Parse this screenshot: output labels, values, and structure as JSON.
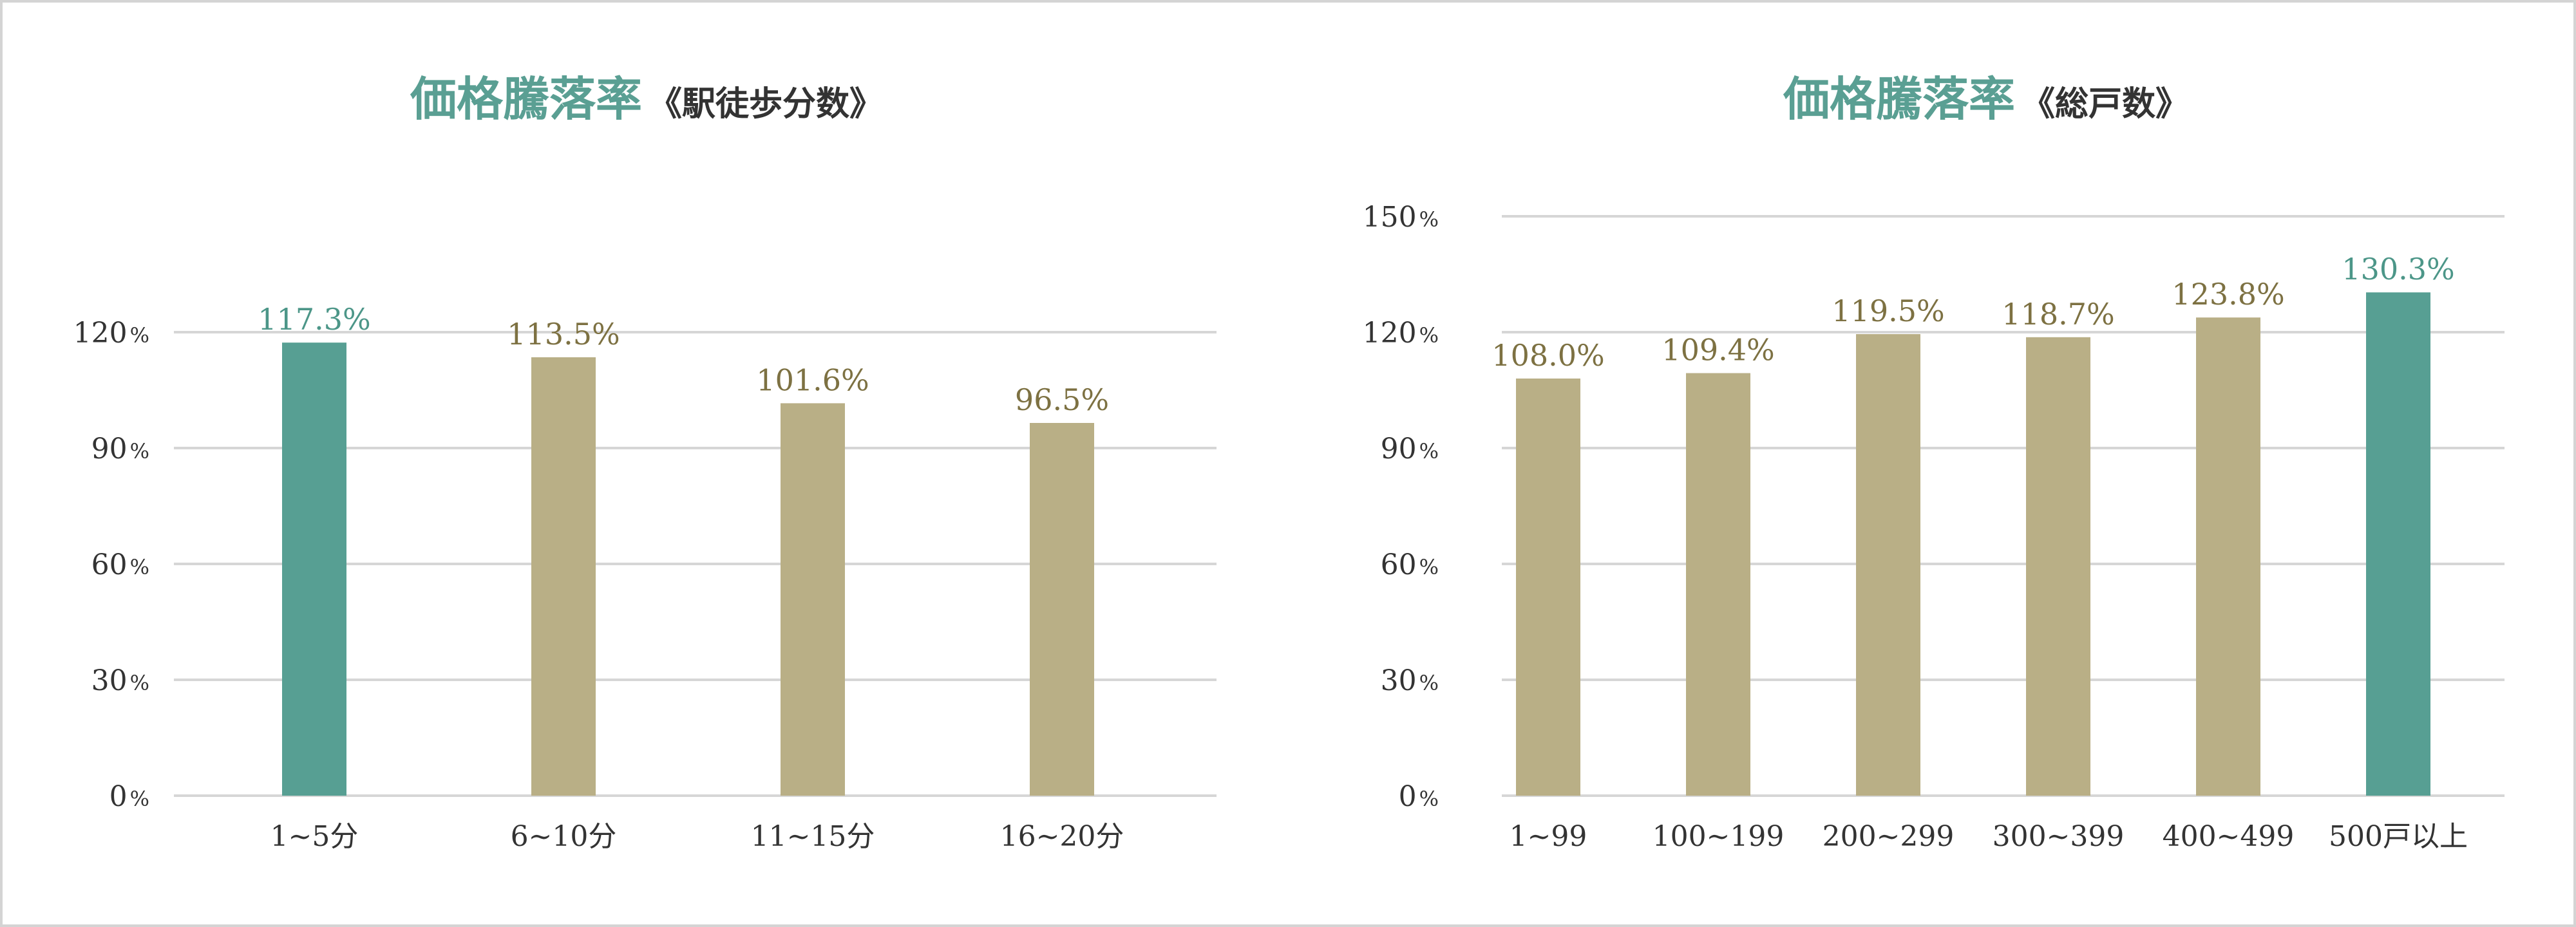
{
  "colors": {
    "highlight": "#579f93",
    "normal": "#b9af86",
    "value_normal": "#7d7142",
    "value_highlight": "#4c9688",
    "title": "#5a9f93"
  },
  "chart_data": [
    {
      "type": "bar",
      "title": "価格騰落率",
      "subtitle": "《駅徒歩分数》",
      "categories": [
        "1~5分",
        "6~10分",
        "11~15分",
        "16~20分"
      ],
      "values": [
        117.3,
        113.5,
        101.6,
        96.5
      ],
      "value_labels": [
        "117.3%",
        "113.5%",
        "101.6%",
        "96.5%"
      ],
      "highlight_index": 0,
      "ylim": [
        0,
        120
      ],
      "yticks": [
        0,
        30,
        60,
        90,
        120
      ],
      "ytick_labels": [
        "0",
        "30",
        "60",
        "90",
        "120"
      ],
      "ytick_unit": "%",
      "xlabel": "",
      "ylabel": "",
      "grid": true
    },
    {
      "type": "bar",
      "title": "価格騰落率",
      "subtitle": "《総戸数》",
      "categories": [
        "1~99",
        "100~199",
        "200~299",
        "300~399",
        "400~499",
        "500戸以上"
      ],
      "values": [
        108.0,
        109.4,
        119.5,
        118.7,
        123.8,
        130.3
      ],
      "value_labels": [
        "108.0%",
        "109.4%",
        "119.5%",
        "118.7%",
        "123.8%",
        "130.3%"
      ],
      "highlight_index": 5,
      "ylim": [
        0,
        150
      ],
      "yticks": [
        0,
        30,
        60,
        90,
        120,
        150
      ],
      "ytick_labels": [
        "0",
        "30",
        "60",
        "90",
        "120",
        "150"
      ],
      "ytick_unit": "%",
      "xlabel": "",
      "ylabel": "",
      "grid": true
    }
  ]
}
